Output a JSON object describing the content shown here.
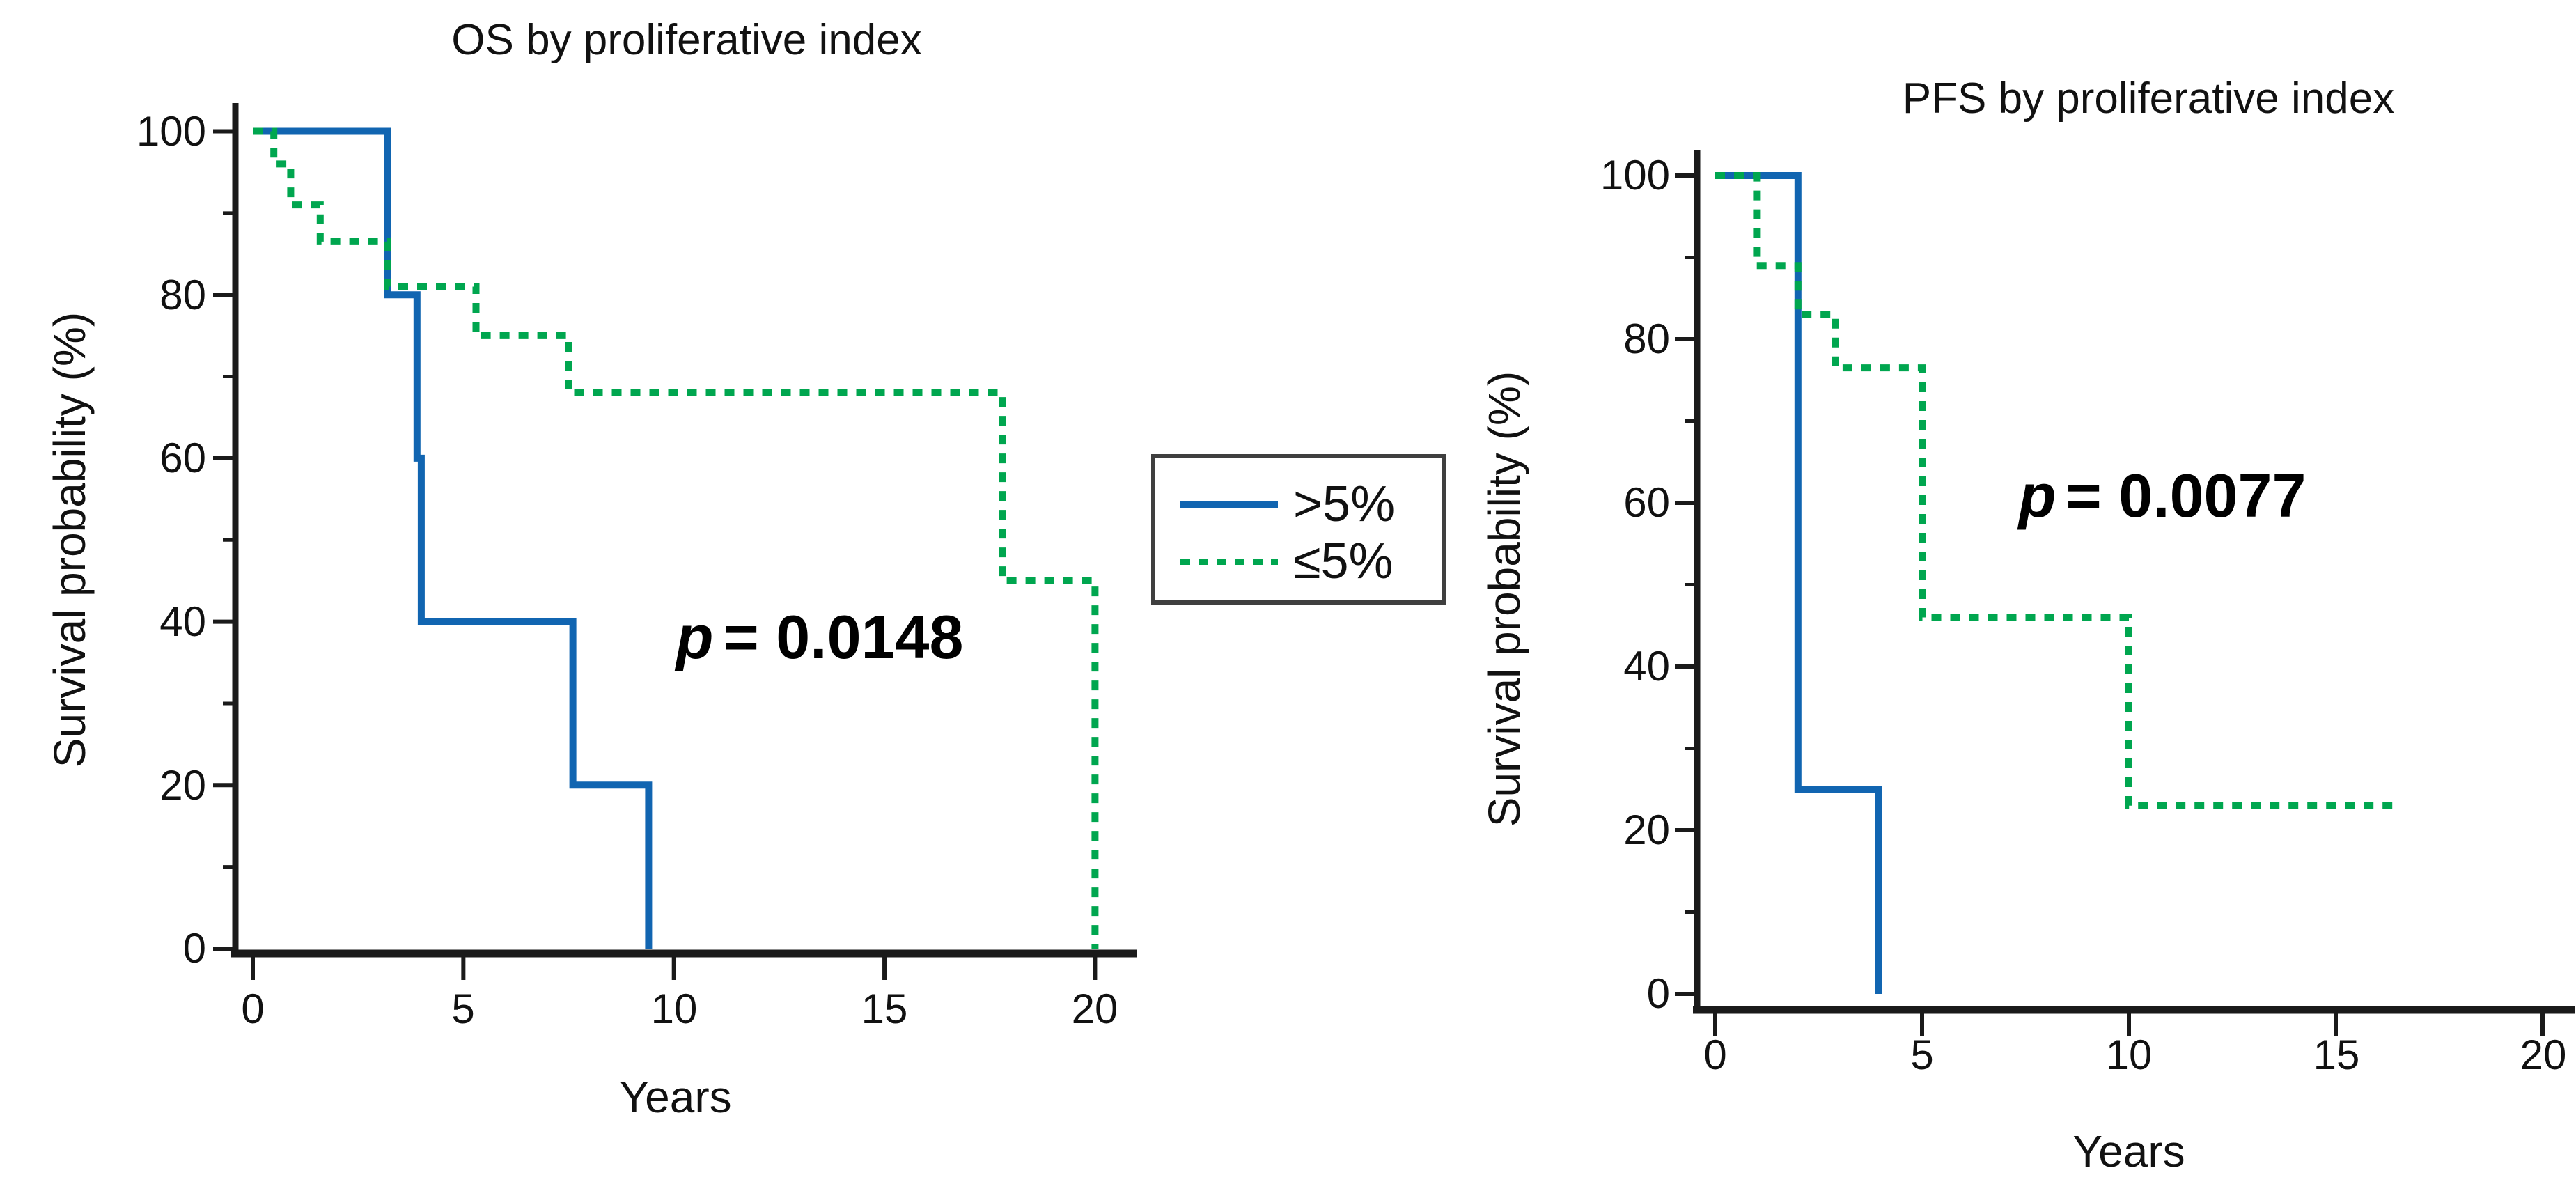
{
  "figure": {
    "background_color": "#ffffff",
    "description_colors": {
      "blue_series": "#1165b1",
      "green_series": "#00a64f",
      "axis": "#1a1a1a"
    }
  },
  "legend": {
    "entries": [
      {
        "label": ">5%",
        "color": "#1165b1",
        "line_style": "solid"
      },
      {
        "label": "≤5%",
        "color": "#00a64f",
        "line_style": "dotted"
      }
    ]
  },
  "chart_data": [
    {
      "type": "line",
      "subtype": "kaplan-meier-step",
      "title": "OS by proliferative index",
      "xlabel": "Years",
      "ylabel": "Survival probability (%)",
      "p_var": "p",
      "p_eq": "= 0.0148",
      "p_value": 0.0148,
      "xlim": [
        0,
        20
      ],
      "ylim": [
        0,
        100
      ],
      "grid": false,
      "x_ticks": [
        0,
        5,
        10,
        15,
        20
      ],
      "y_ticks_desc": [
        100,
        80,
        60,
        40,
        20,
        0
      ],
      "y_minor_ticks": [
        90,
        70,
        50,
        30,
        10
      ],
      "series": [
        {
          "name": ">5%",
          "color": "#1165b1",
          "style": "solid",
          "points": [
            [
              0,
              100
            ],
            [
              3.2,
              100
            ],
            [
              3.2,
              80
            ],
            [
              3.9,
              80
            ],
            [
              3.9,
              60
            ],
            [
              4.0,
              60
            ],
            [
              4.0,
              40
            ],
            [
              7.6,
              40
            ],
            [
              7.6,
              20
            ],
            [
              9.4,
              20
            ],
            [
              9.4,
              0
            ]
          ]
        },
        {
          "name": "≤5%",
          "color": "#00a64f",
          "style": "dotted",
          "points": [
            [
              0,
              100
            ],
            [
              0.5,
              100
            ],
            [
              0.5,
              96
            ],
            [
              0.9,
              96
            ],
            [
              0.9,
              91
            ],
            [
              1.6,
              91
            ],
            [
              1.6,
              86.5
            ],
            [
              3.2,
              86.5
            ],
            [
              3.2,
              81
            ],
            [
              5.3,
              81
            ],
            [
              5.3,
              75
            ],
            [
              7.5,
              75
            ],
            [
              7.5,
              68
            ],
            [
              17.8,
              68
            ],
            [
              17.8,
              45
            ],
            [
              20,
              45
            ],
            [
              20,
              0
            ]
          ]
        }
      ]
    },
    {
      "type": "line",
      "subtype": "kaplan-meier-step",
      "title": "PFS by proliferative index",
      "xlabel": "Years",
      "ylabel": "Survival probability (%)",
      "p_var": "p",
      "p_eq": "= 0.0077",
      "p_value": 0.0077,
      "xlim": [
        0,
        20
      ],
      "ylim": [
        0,
        100
      ],
      "grid": false,
      "x_ticks": [
        0,
        5,
        10,
        15,
        20
      ],
      "y_ticks_desc": [
        100,
        80,
        60,
        40,
        20,
        0
      ],
      "y_minor_ticks": [
        90,
        70,
        50,
        30,
        10
      ],
      "series": [
        {
          "name": ">5%",
          "color": "#1165b1",
          "style": "solid",
          "points": [
            [
              0,
              100
            ],
            [
              2.0,
              100
            ],
            [
              2.0,
              25
            ],
            [
              3.95,
              25
            ],
            [
              3.95,
              0
            ]
          ]
        },
        {
          "name": "≤5%",
          "color": "#00a64f",
          "style": "dotted",
          "points": [
            [
              0,
              100
            ],
            [
              1.0,
              100
            ],
            [
              1.0,
              89
            ],
            [
              2.0,
              89
            ],
            [
              2.0,
              83
            ],
            [
              2.9,
              83
            ],
            [
              2.9,
              76.5
            ],
            [
              5.0,
              76.5
            ],
            [
              5.0,
              46
            ],
            [
              10,
              46
            ],
            [
              10,
              23
            ],
            [
              16.4,
              23
            ]
          ]
        }
      ]
    }
  ]
}
